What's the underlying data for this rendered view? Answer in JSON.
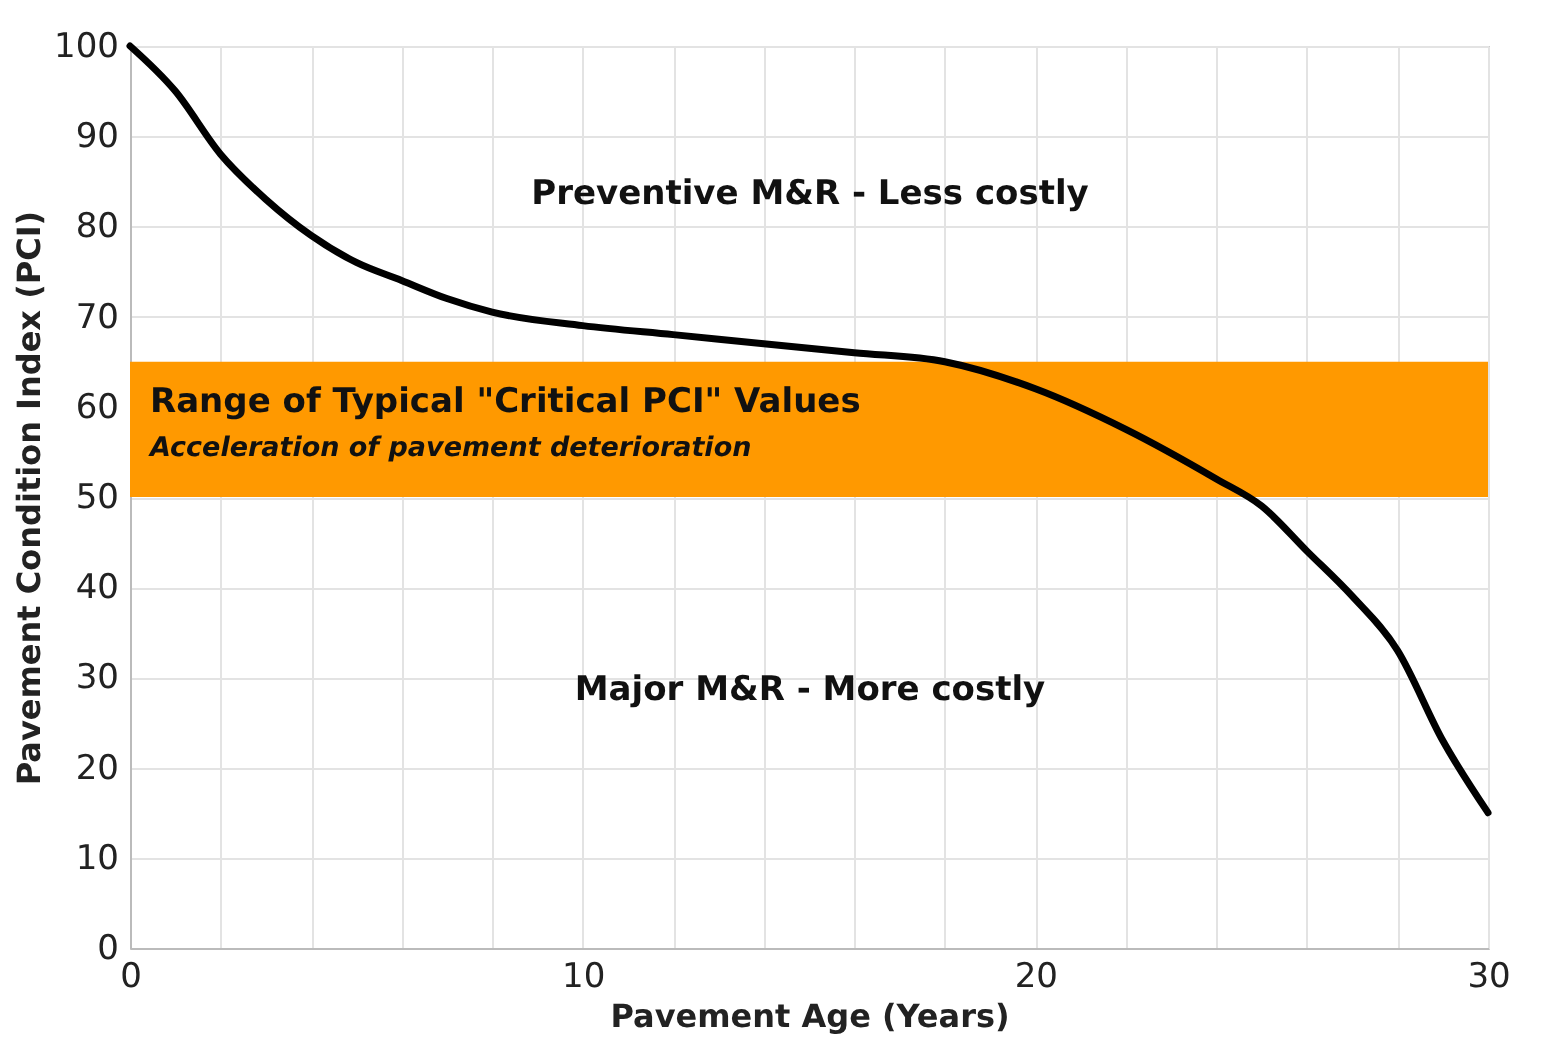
{
  "chart_data": {
    "type": "line",
    "xlabel": "Pavement Age (Years)",
    "ylabel": "Pavement Condition Index (PCI)",
    "x": [
      0,
      1,
      2,
      3,
      4,
      5,
      6,
      7,
      8,
      10,
      12,
      14,
      16,
      18,
      20,
      22,
      24,
      25,
      26,
      27,
      28,
      29,
      30
    ],
    "series": [
      {
        "color": "#000000",
        "values": [
          100,
          95,
          88,
          83,
          79,
          76,
          74,
          72,
          70.5,
          69,
          68,
          67,
          66,
          65,
          62,
          57.5,
          52,
          49,
          44,
          39,
          33,
          23,
          15
        ]
      }
    ],
    "xlim": [
      0,
      30
    ],
    "ylim": [
      0,
      100
    ],
    "xticks": [
      0,
      {
        "value": 2,
        "label": null
      },
      {
        "value": 4,
        "label": null
      },
      {
        "value": 6,
        "label": null
      },
      {
        "value": 8,
        "label": null
      },
      10,
      {
        "value": 12,
        "label": null
      },
      {
        "value": 14,
        "label": null
      },
      {
        "value": 16,
        "label": null
      },
      {
        "value": 18,
        "label": null
      },
      20,
      {
        "value": 22,
        "label": null
      },
      {
        "value": 24,
        "label": null
      },
      {
        "value": 26,
        "label": null
      },
      {
        "value": 28,
        "label": null
      },
      30
    ],
    "yticks": [
      0,
      10,
      20,
      30,
      40,
      50,
      60,
      70,
      80,
      90,
      100
    ],
    "bands": [
      {
        "axis": "y",
        "from": 50,
        "to": 65,
        "label": "Range of Typical \"Critical PCI\" Values",
        "color": "#ff9900"
      }
    ],
    "annotations": [
      "Acceleration of pavement deterioration",
      "Preventive M&R - Less costly",
      "Major M&R - More costly"
    ],
    "grid": true,
    "marker": "none",
    "line_style": "solid"
  }
}
